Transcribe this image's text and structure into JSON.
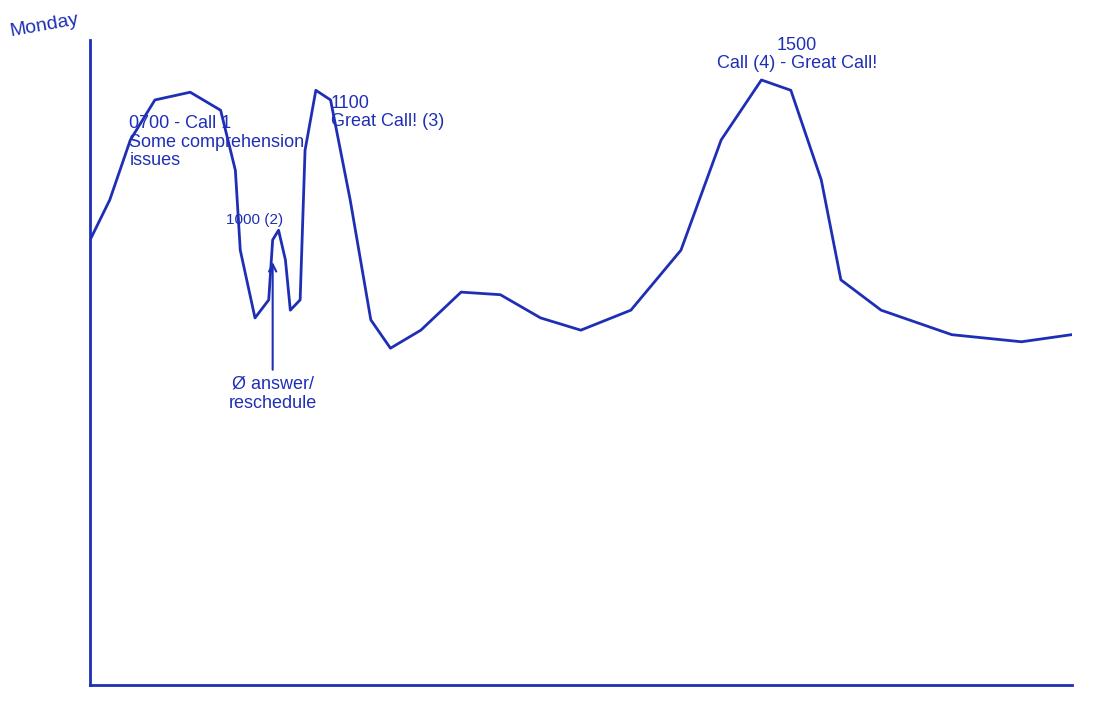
{
  "chart_data": {
    "type": "line",
    "title": "Monday",
    "x": [
      0,
      2.0,
      4.1,
      6.6,
      10.2,
      13.3,
      14.8,
      15.3,
      16.8,
      18.2,
      18.6,
      19.2,
      19.9,
      20.4,
      21.4,
      21.9,
      23.0,
      24.5,
      26.5,
      28.6,
      30.6,
      33.7,
      37.8,
      41.8,
      45.9,
      50.0,
      55.1,
      60.2,
      64.3,
      68.4,
      71.4,
      74.5,
      76.5,
      80.6,
      87.8,
      94.9,
      100
    ],
    "values": [
      69.0,
      75.2,
      84.5,
      90.7,
      91.9,
      89.1,
      79.8,
      67.4,
      56.9,
      59.7,
      69.0,
      70.5,
      65.9,
      58.1,
      59.7,
      82.9,
      92.2,
      90.7,
      75.2,
      56.6,
      52.2,
      55.0,
      60.9,
      60.5,
      56.9,
      55.0,
      58.1,
      67.4,
      84.5,
      93.8,
      92.2,
      78.3,
      62.8,
      58.1,
      54.3,
      53.2,
      54.3
    ],
    "color": "#1f2fb5",
    "xlim": [
      0,
      100
    ],
    "ylim": [
      0,
      100
    ],
    "xticks": [],
    "yticks": [],
    "tick_labels": false,
    "grid": false,
    "annotations": [
      {
        "text": "0700 - Call 1\nSome comprehension\nissues"
      },
      {
        "text": "1000 (2)"
      },
      {
        "text": "Ø answer/\nreschedule"
      },
      {
        "text": "1100\nGreat Call! (3)"
      },
      {
        "text": "1500\nCall (4) - Great Call!"
      }
    ]
  }
}
